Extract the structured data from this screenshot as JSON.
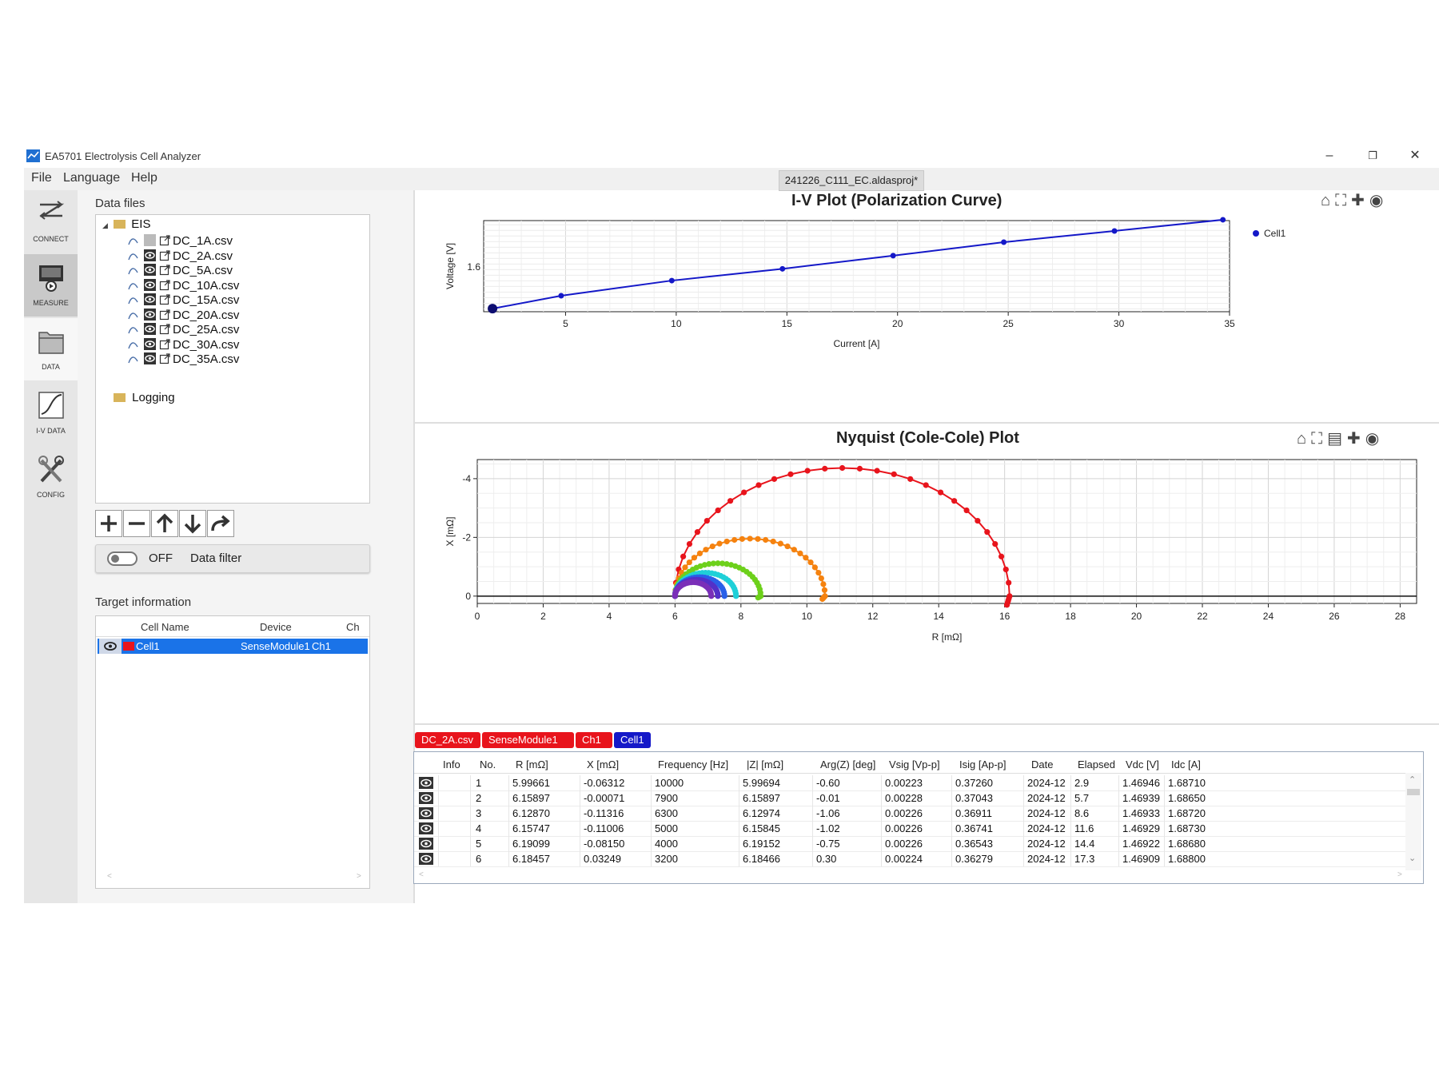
{
  "window": {
    "app_title": "EA5701 Electrolysis Cell Analyzer",
    "project_tab": "241226_C111_EC.aldasproj*"
  },
  "menu": [
    "File",
    "Language",
    "Help"
  ],
  "nav": [
    {
      "label": "CONNECT",
      "icon": "connect-icon"
    },
    {
      "label": "MEASURE",
      "icon": "measure-icon"
    },
    {
      "label": "DATA",
      "icon": "folder-icon"
    },
    {
      "label": "I-V DATA",
      "icon": "iv-curve-icon"
    },
    {
      "label": "CONFIG",
      "icon": "tools-icon"
    }
  ],
  "data_files": {
    "heading": "Data files",
    "root": "EIS",
    "files": [
      "DC_1A.csv",
      "DC_2A.csv",
      "DC_5A.csv",
      "DC_10A.csv",
      "DC_15A.csv",
      "DC_20A.csv",
      "DC_25A.csv",
      "DC_30A.csv",
      "DC_35A.csv"
    ],
    "logging": "Logging"
  },
  "filter": {
    "state": "OFF",
    "label": "Data filter",
    "enabled": false
  },
  "target": {
    "heading": "Target information",
    "columns": [
      "Cell Name",
      "Device",
      "Ch"
    ],
    "row": {
      "cell": "Cell1",
      "device": "SenseModule1",
      "ch": "Ch1",
      "color": "#e8141c"
    }
  },
  "iv_plot": {
    "title": "I-V Plot (Polarization Curve)",
    "xlabel": "Current [A]",
    "ylabel": "Voltage [V]",
    "legend": "Cell1",
    "x_ticks": [
      "5",
      "10",
      "15",
      "20",
      "25",
      "30",
      "35"
    ],
    "y_tick": "1.6"
  },
  "nyquist_plot": {
    "title": "Nyquist (Cole-Cole) Plot",
    "xlabel": "R [mΩ]",
    "ylabel": "X [mΩ]",
    "x_ticks": [
      "0",
      "2",
      "4",
      "6",
      "8",
      "10",
      "12",
      "14",
      "16",
      "18",
      "20",
      "22",
      "24",
      "26",
      "28"
    ],
    "y_ticks": [
      "-4",
      "-2",
      "0"
    ]
  },
  "chart_data": [
    {
      "type": "line",
      "title": "I-V Plot (Polarization Curve)",
      "xlabel": "Current [A]",
      "ylabel": "Voltage [V]",
      "xlim": [
        1.3,
        35
      ],
      "ylim": [
        1.44,
        1.765
      ],
      "series": [
        {
          "name": "Cell1",
          "color": "#1418c8",
          "x": [
            1.7,
            4.8,
            9.8,
            14.8,
            19.8,
            24.8,
            29.8,
            34.7
          ],
          "y": [
            1.451,
            1.497,
            1.551,
            1.593,
            1.64,
            1.688,
            1.728,
            1.768
          ]
        }
      ]
    },
    {
      "type": "scatter",
      "title": "Nyquist (Cole-Cole) Plot",
      "xlabel": "R [mΩ]",
      "ylabel": "X [mΩ]",
      "xlim": [
        0,
        28.5
      ],
      "ylim": [
        -4.65,
        0.25
      ],
      "y_inverted": true,
      "series": [
        {
          "color": "#e8141c",
          "r0": 6.0,
          "r1": 16.15,
          "tail": 0.3
        },
        {
          "color": "#f5820f",
          "r0": 6.0,
          "r1": 10.55,
          "tail": 0.1
        },
        {
          "color": "#6dd01b",
          "r0": 6.0,
          "r1": 8.6,
          "tail": 0.05
        },
        {
          "color": "#1fd0d8",
          "r0": 6.0,
          "r1": 7.85,
          "tail": 0.0
        },
        {
          "color": "#2a5fe8",
          "r0": 6.0,
          "r1": 7.5,
          "tail": 0.0
        },
        {
          "color": "#5330c8",
          "r0": 6.0,
          "r1": 7.3,
          "tail": 0.0
        },
        {
          "color": "#7a2fb8",
          "r0": 6.0,
          "r1": 7.1,
          "tail": 0.0
        }
      ]
    }
  ],
  "chips": [
    {
      "label": "DC_2A.csv",
      "color": "#e8141c"
    },
    {
      "label": "SenseModule1",
      "color": "#e8141c"
    },
    {
      "label": "Ch1",
      "color": "#e8141c"
    },
    {
      "label": "Cell1",
      "color": "#1418c8"
    }
  ],
  "table": {
    "columns": [
      "Info",
      "No.",
      "R [mΩ]",
      "X [mΩ]",
      "Frequency [Hz]",
      "|Z| [mΩ]",
      "Arg(Z) [deg]",
      "Vsig [Vp-p]",
      "Isig [Ap-p]",
      "Date",
      "Elapsed",
      "Vdc [V]",
      "Idc [A]"
    ],
    "rows": [
      [
        "1",
        "5.99661",
        "-0.06312",
        "10000",
        "5.99694",
        "-0.60",
        "0.00223",
        "0.37260",
        "2024-12",
        "2.9",
        "1.46946",
        "1.68710"
      ],
      [
        "2",
        "6.15897",
        "-0.00071",
        "7900",
        "6.15897",
        "-0.01",
        "0.00228",
        "0.37043",
        "2024-12",
        "5.7",
        "1.46939",
        "1.68650"
      ],
      [
        "3",
        "6.12870",
        "-0.11316",
        "6300",
        "6.12974",
        "-1.06",
        "0.00226",
        "0.36911",
        "2024-12",
        "8.6",
        "1.46933",
        "1.68720"
      ],
      [
        "4",
        "6.15747",
        "-0.11006",
        "5000",
        "6.15845",
        "-1.02",
        "0.00226",
        "0.36741",
        "2024-12",
        "11.6",
        "1.46929",
        "1.68730"
      ],
      [
        "5",
        "6.19099",
        "-0.08150",
        "4000",
        "6.19152",
        "-0.75",
        "0.00226",
        "0.36543",
        "2024-12",
        "14.4",
        "1.46922",
        "1.68680"
      ],
      [
        "6",
        "6.18457",
        "0.03249",
        "3200",
        "6.18466",
        "0.30",
        "0.00224",
        "0.36279",
        "2024-12",
        "17.3",
        "1.46909",
        "1.68800"
      ]
    ]
  }
}
